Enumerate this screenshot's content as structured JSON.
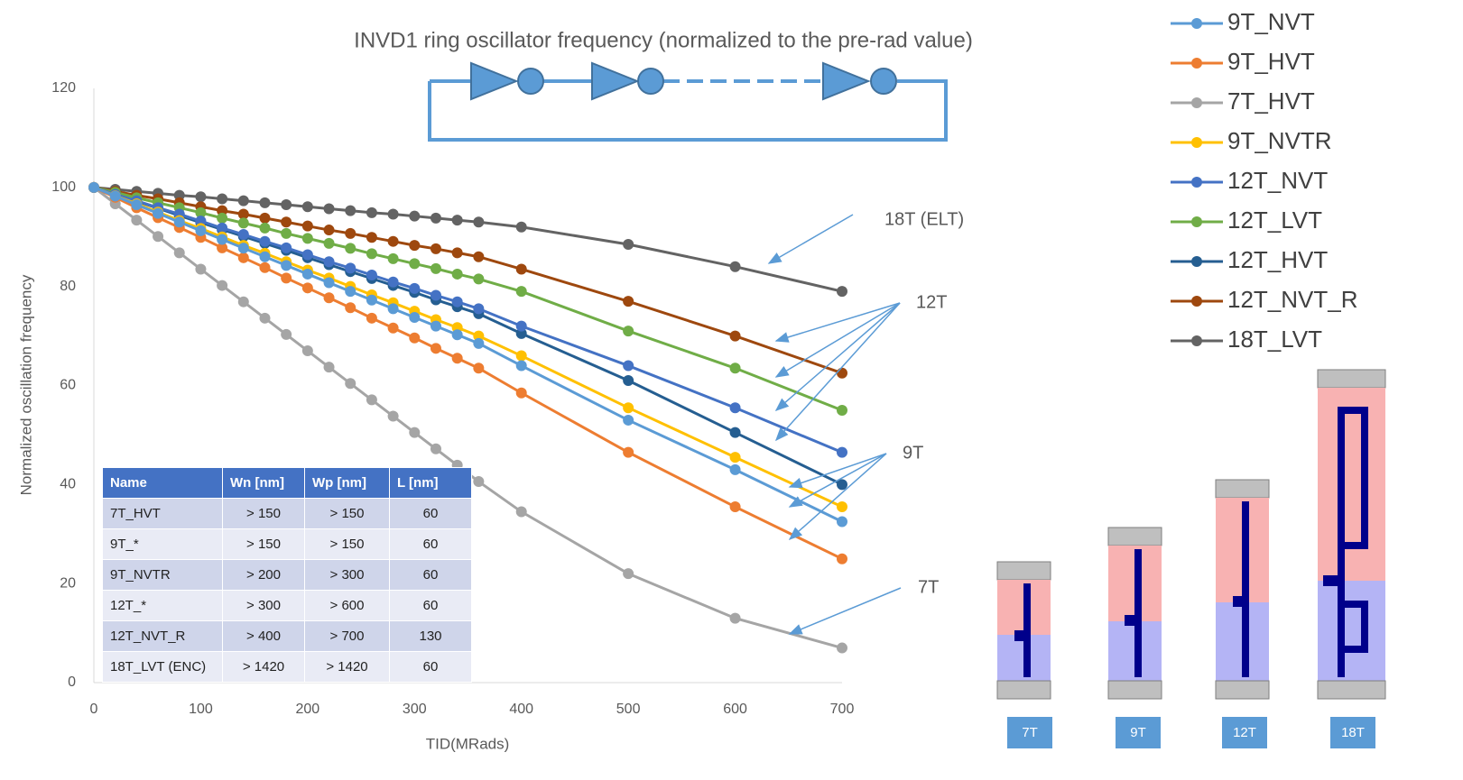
{
  "chart_data": {
    "type": "line",
    "title": "INVD1 ring oscillator frequency (normalized to the pre-rad value)",
    "xlabel": "TID(MRads)",
    "ylabel": "Normalized oscillation frequency",
    "x": [
      0,
      20,
      40,
      60,
      80,
      100,
      120,
      140,
      160,
      180,
      200,
      220,
      240,
      260,
      280,
      300,
      320,
      340,
      360,
      400,
      500,
      600,
      700
    ],
    "xlim": [
      0,
      700
    ],
    "xticks": [
      0,
      100,
      200,
      300,
      400,
      500,
      600,
      700
    ],
    "ylim": [
      0,
      120
    ],
    "yticks": [
      0,
      20,
      40,
      60,
      80,
      100,
      120
    ],
    "grid": false,
    "legend": "upper-right",
    "series": [
      {
        "name": "9T_NVT",
        "color": "#5b9bd5",
        "values": [
          100,
          98.25,
          96.5,
          94.75,
          93,
          91.25,
          89.5,
          87.75,
          86,
          84.25,
          82.5,
          80.75,
          79,
          77.25,
          75.5,
          73.75,
          72,
          70.25,
          68.5,
          64,
          53,
          43,
          32.5
        ]
      },
      {
        "name": "9T_HVT",
        "color": "#ed7d31",
        "values": [
          100,
          98,
          95.9,
          93.9,
          91.9,
          89.9,
          87.8,
          85.8,
          83.8,
          81.7,
          79.7,
          77.7,
          75.7,
          73.6,
          71.6,
          69.6,
          67.5,
          65.5,
          63.5,
          58.5,
          46.5,
          35.5,
          25
        ]
      },
      {
        "name": "7T_HVT",
        "color": "#a5a5a5",
        "values": [
          100,
          96.7,
          93.4,
          90.1,
          86.8,
          83.5,
          80.2,
          76.9,
          73.6,
          70.3,
          67,
          63.7,
          60.4,
          57.1,
          53.8,
          50.5,
          47.2,
          43.9,
          40.6,
          34.5,
          22,
          13,
          7
        ]
      },
      {
        "name": "9T_NVTR",
        "color": "#ffc000",
        "values": [
          100,
          98.3,
          96.7,
          95,
          93.3,
          91.7,
          90,
          88.3,
          86.7,
          85,
          83.3,
          81.7,
          80,
          78.3,
          76.7,
          75,
          73.3,
          71.7,
          70,
          66,
          55.5,
          45.5,
          35.5
        ]
      },
      {
        "name": "12T_NVT",
        "color": "#4472c4",
        "values": [
          100,
          98.6,
          97.3,
          95.9,
          94.6,
          93.2,
          91.8,
          90.5,
          89.1,
          87.8,
          86.4,
          85,
          83.7,
          82.3,
          80.9,
          79.6,
          78.2,
          76.9,
          75.5,
          72,
          64,
          55.5,
          46.5
        ]
      },
      {
        "name": "12T_LVT",
        "color": "#70ad47",
        "values": [
          100,
          99,
          97.9,
          96.9,
          95.9,
          94.9,
          93.8,
          92.8,
          91.8,
          90.7,
          89.7,
          88.7,
          87.7,
          86.6,
          85.6,
          84.6,
          83.6,
          82.5,
          81.5,
          79,
          71,
          63.5,
          55
        ]
      },
      {
        "name": "12T_HVT",
        "color": "#255e91",
        "values": [
          100,
          98.6,
          97.2,
          95.8,
          94.3,
          92.9,
          91.5,
          90.1,
          88.7,
          87.3,
          85.8,
          84.4,
          83,
          81.6,
          80.2,
          78.8,
          77.3,
          75.9,
          74.5,
          70.5,
          61,
          50.5,
          40
        ]
      },
      {
        "name": "12T_NVT_R",
        "color": "#9e480e",
        "values": [
          100,
          99.2,
          98.4,
          97.7,
          96.9,
          96.1,
          95.3,
          94.6,
          93.8,
          93,
          92.2,
          91.4,
          90.7,
          89.9,
          89.1,
          88.3,
          87.6,
          86.8,
          86,
          83.5,
          77,
          70,
          62.5
        ]
      },
      {
        "name": "18T_LVT",
        "color": "#636363",
        "values": [
          100,
          99.6,
          99.2,
          98.8,
          98.4,
          98.1,
          97.7,
          97.3,
          96.9,
          96.5,
          96.1,
          95.7,
          95.3,
          94.9,
          94.6,
          94.2,
          93.8,
          93.4,
          93,
          92,
          88.5,
          84,
          79
        ]
      }
    ],
    "annotations": [
      "18T (ELT)",
      "12T",
      "9T",
      "7T"
    ]
  },
  "table": {
    "columns": [
      "Name",
      "Wn [nm]",
      "Wp [nm]",
      "L [nm]"
    ],
    "rows": [
      [
        "7T_HVT",
        "> 150",
        "> 150",
        "60"
      ],
      [
        "9T_*",
        "> 150",
        "> 150",
        "60"
      ],
      [
        "9T_NVTR",
        "> 200",
        "> 300",
        "60"
      ],
      [
        "12T_*",
        "> 300",
        "> 600",
        "60"
      ],
      [
        "12T_NVT_R",
        "> 400",
        "> 700",
        "130"
      ],
      [
        "18T_LVT (ENC)",
        "> 1420",
        "> 1420",
        "60"
      ]
    ]
  },
  "cell_labels": [
    "7T",
    "9T",
    "12T",
    "18T"
  ]
}
